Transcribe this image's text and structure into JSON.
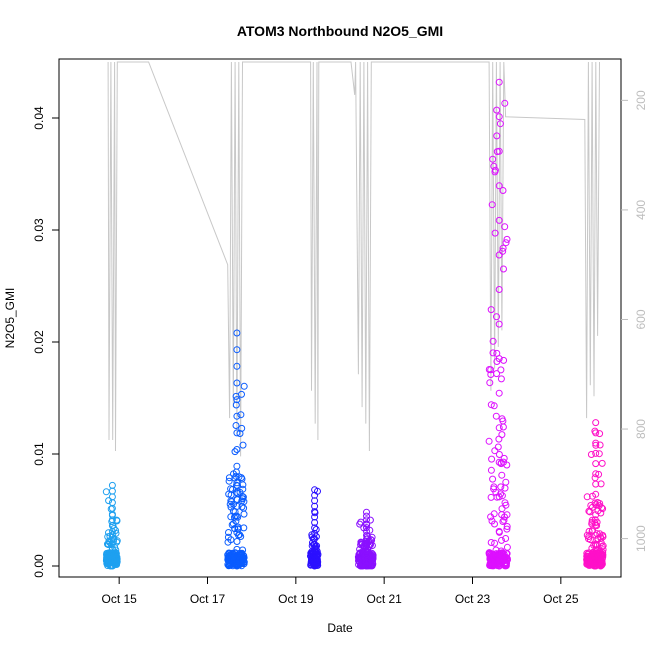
{
  "chart_data": {
    "type": "scatter",
    "title": "ATOM3 Northbound N2O5_GMI",
    "xlabel": "Date",
    "ylabel": "N2O5_GMI",
    "xlim": [
      "2017-10-14T00:00",
      "2017-10-26T00:00"
    ],
    "ylim": [
      0,
      0.045
    ],
    "x_ticks": [
      {
        "date": "2017-10-15",
        "label": "Oct 15"
      },
      {
        "date": "2017-10-17",
        "label": "Oct 17"
      },
      {
        "date": "2017-10-19",
        "label": "Oct 19"
      },
      {
        "date": "2017-10-21",
        "label": "Oct 21"
      },
      {
        "date": "2017-10-23",
        "label": "Oct 23"
      },
      {
        "date": "2017-10-25",
        "label": "Oct 25"
      }
    ],
    "y_ticks": [
      {
        "value": 0.0,
        "label": "0.00"
      },
      {
        "value": 0.01,
        "label": "0.01"
      },
      {
        "value": 0.02,
        "label": "0.02"
      },
      {
        "value": 0.03,
        "label": "0.03"
      },
      {
        "value": 0.04,
        "label": "0.04"
      }
    ],
    "y2_axis": {
      "label": "",
      "reversed": true,
      "range": [
        130,
        1050
      ],
      "ticks": [
        200,
        400,
        600,
        800,
        1000
      ],
      "color": "#bdbdbd"
    },
    "grid": false,
    "marker": "open-circle",
    "series": [
      {
        "color": "#1ea0f0",
        "start": "2017-10-14T17:00",
        "end": "2017-10-14T23:00",
        "max": 0.0072
      },
      {
        "color": "#0a5cff",
        "start": "2017-10-17T11:00",
        "end": "2017-10-17T20:00",
        "max": 0.0208
      },
      {
        "color": "#2b10ff",
        "start": "2017-10-19T08:00",
        "end": "2017-10-19T12:00",
        "max": 0.0068
      },
      {
        "color": "#8a10ff",
        "start": "2017-10-20T10:00",
        "end": "2017-10-20T18:00",
        "max": 0.0048
      },
      {
        "color": "#dd10ff",
        "start": "2017-10-23T09:00",
        "end": "2017-10-23T19:00",
        "max": 0.0432
      },
      {
        "color": "#ff10c8",
        "start": "2017-10-25T14:00",
        "end": "2017-10-25T23:00",
        "max": 0.0128
      }
    ],
    "pressure_profile": {
      "color": "#c8c8c8",
      "points": [
        {
          "date": "2017-10-14T18:00",
          "p": 130
        },
        {
          "date": "2017-10-14T18:30",
          "p": 820
        },
        {
          "date": "2017-10-14T19:30",
          "p": 130
        },
        {
          "date": "2017-10-14T20:30",
          "p": 820
        },
        {
          "date": "2017-10-14T21:30",
          "p": 130
        },
        {
          "date": "2017-10-14T22:00",
          "p": 840
        },
        {
          "date": "2017-10-14T23:00",
          "p": 130
        },
        {
          "date": "2017-10-15T16:00",
          "p": 130
        },
        {
          "date": "2017-10-17T11:00",
          "p": 500
        },
        {
          "date": "2017-10-17T12:00",
          "p": 780
        },
        {
          "date": "2017-10-17T13:00",
          "p": 130
        },
        {
          "date": "2017-10-17T14:00",
          "p": 760
        },
        {
          "date": "2017-10-17T15:00",
          "p": 130
        },
        {
          "date": "2017-10-17T16:00",
          "p": 810
        },
        {
          "date": "2017-10-17T17:00",
          "p": 130
        },
        {
          "date": "2017-10-17T18:00",
          "p": 850
        },
        {
          "date": "2017-10-17T19:00",
          "p": 130
        },
        {
          "date": "2017-10-19T08:00",
          "p": 130
        },
        {
          "date": "2017-10-19T08:30",
          "p": 730
        },
        {
          "date": "2017-10-19T09:30",
          "p": 130
        },
        {
          "date": "2017-10-19T10:30",
          "p": 790
        },
        {
          "date": "2017-10-19T11:30",
          "p": 130
        },
        {
          "date": "2017-10-19T12:00",
          "p": 820
        },
        {
          "date": "2017-10-19T12:30",
          "p": 130
        },
        {
          "date": "2017-10-20T06:00",
          "p": 130
        },
        {
          "date": "2017-10-20T08:00",
          "p": 190
        },
        {
          "date": "2017-10-20T08:30",
          "p": 130
        },
        {
          "date": "2017-10-20T10:00",
          "p": 700
        },
        {
          "date": "2017-10-20T11:00",
          "p": 130
        },
        {
          "date": "2017-10-20T12:00",
          "p": 760
        },
        {
          "date": "2017-10-20T13:00",
          "p": 130
        },
        {
          "date": "2017-10-20T14:00",
          "p": 790
        },
        {
          "date": "2017-10-20T15:00",
          "p": 130
        },
        {
          "date": "2017-10-20T16:00",
          "p": 840
        },
        {
          "date": "2017-10-20T17:00",
          "p": 130
        },
        {
          "date": "2017-10-23T09:00",
          "p": 130
        },
        {
          "date": "2017-10-23T10:00",
          "p": 730
        },
        {
          "date": "2017-10-23T11:00",
          "p": 130
        },
        {
          "date": "2017-10-23T12:00",
          "p": 690
        },
        {
          "date": "2017-10-23T13:00",
          "p": 130
        },
        {
          "date": "2017-10-23T14:00",
          "p": 650
        },
        {
          "date": "2017-10-23T15:00",
          "p": 130
        },
        {
          "date": "2017-10-23T16:00",
          "p": 620
        },
        {
          "date": "2017-10-23T17:00",
          "p": 130
        },
        {
          "date": "2017-10-23T18:00",
          "p": 230
        },
        {
          "date": "2017-10-25T13:00",
          "p": 235
        },
        {
          "date": "2017-10-25T14:00",
          "p": 780
        },
        {
          "date": "2017-10-25T15:00",
          "p": 130
        },
        {
          "date": "2017-10-25T16:00",
          "p": 720
        },
        {
          "date": "2017-10-25T17:00",
          "p": 130
        },
        {
          "date": "2017-10-25T18:00",
          "p": 740
        },
        {
          "date": "2017-10-25T19:00",
          "p": 130
        },
        {
          "date": "2017-10-25T20:00",
          "p": 630
        },
        {
          "date": "2017-10-25T21:00",
          "p": 130
        }
      ]
    }
  }
}
